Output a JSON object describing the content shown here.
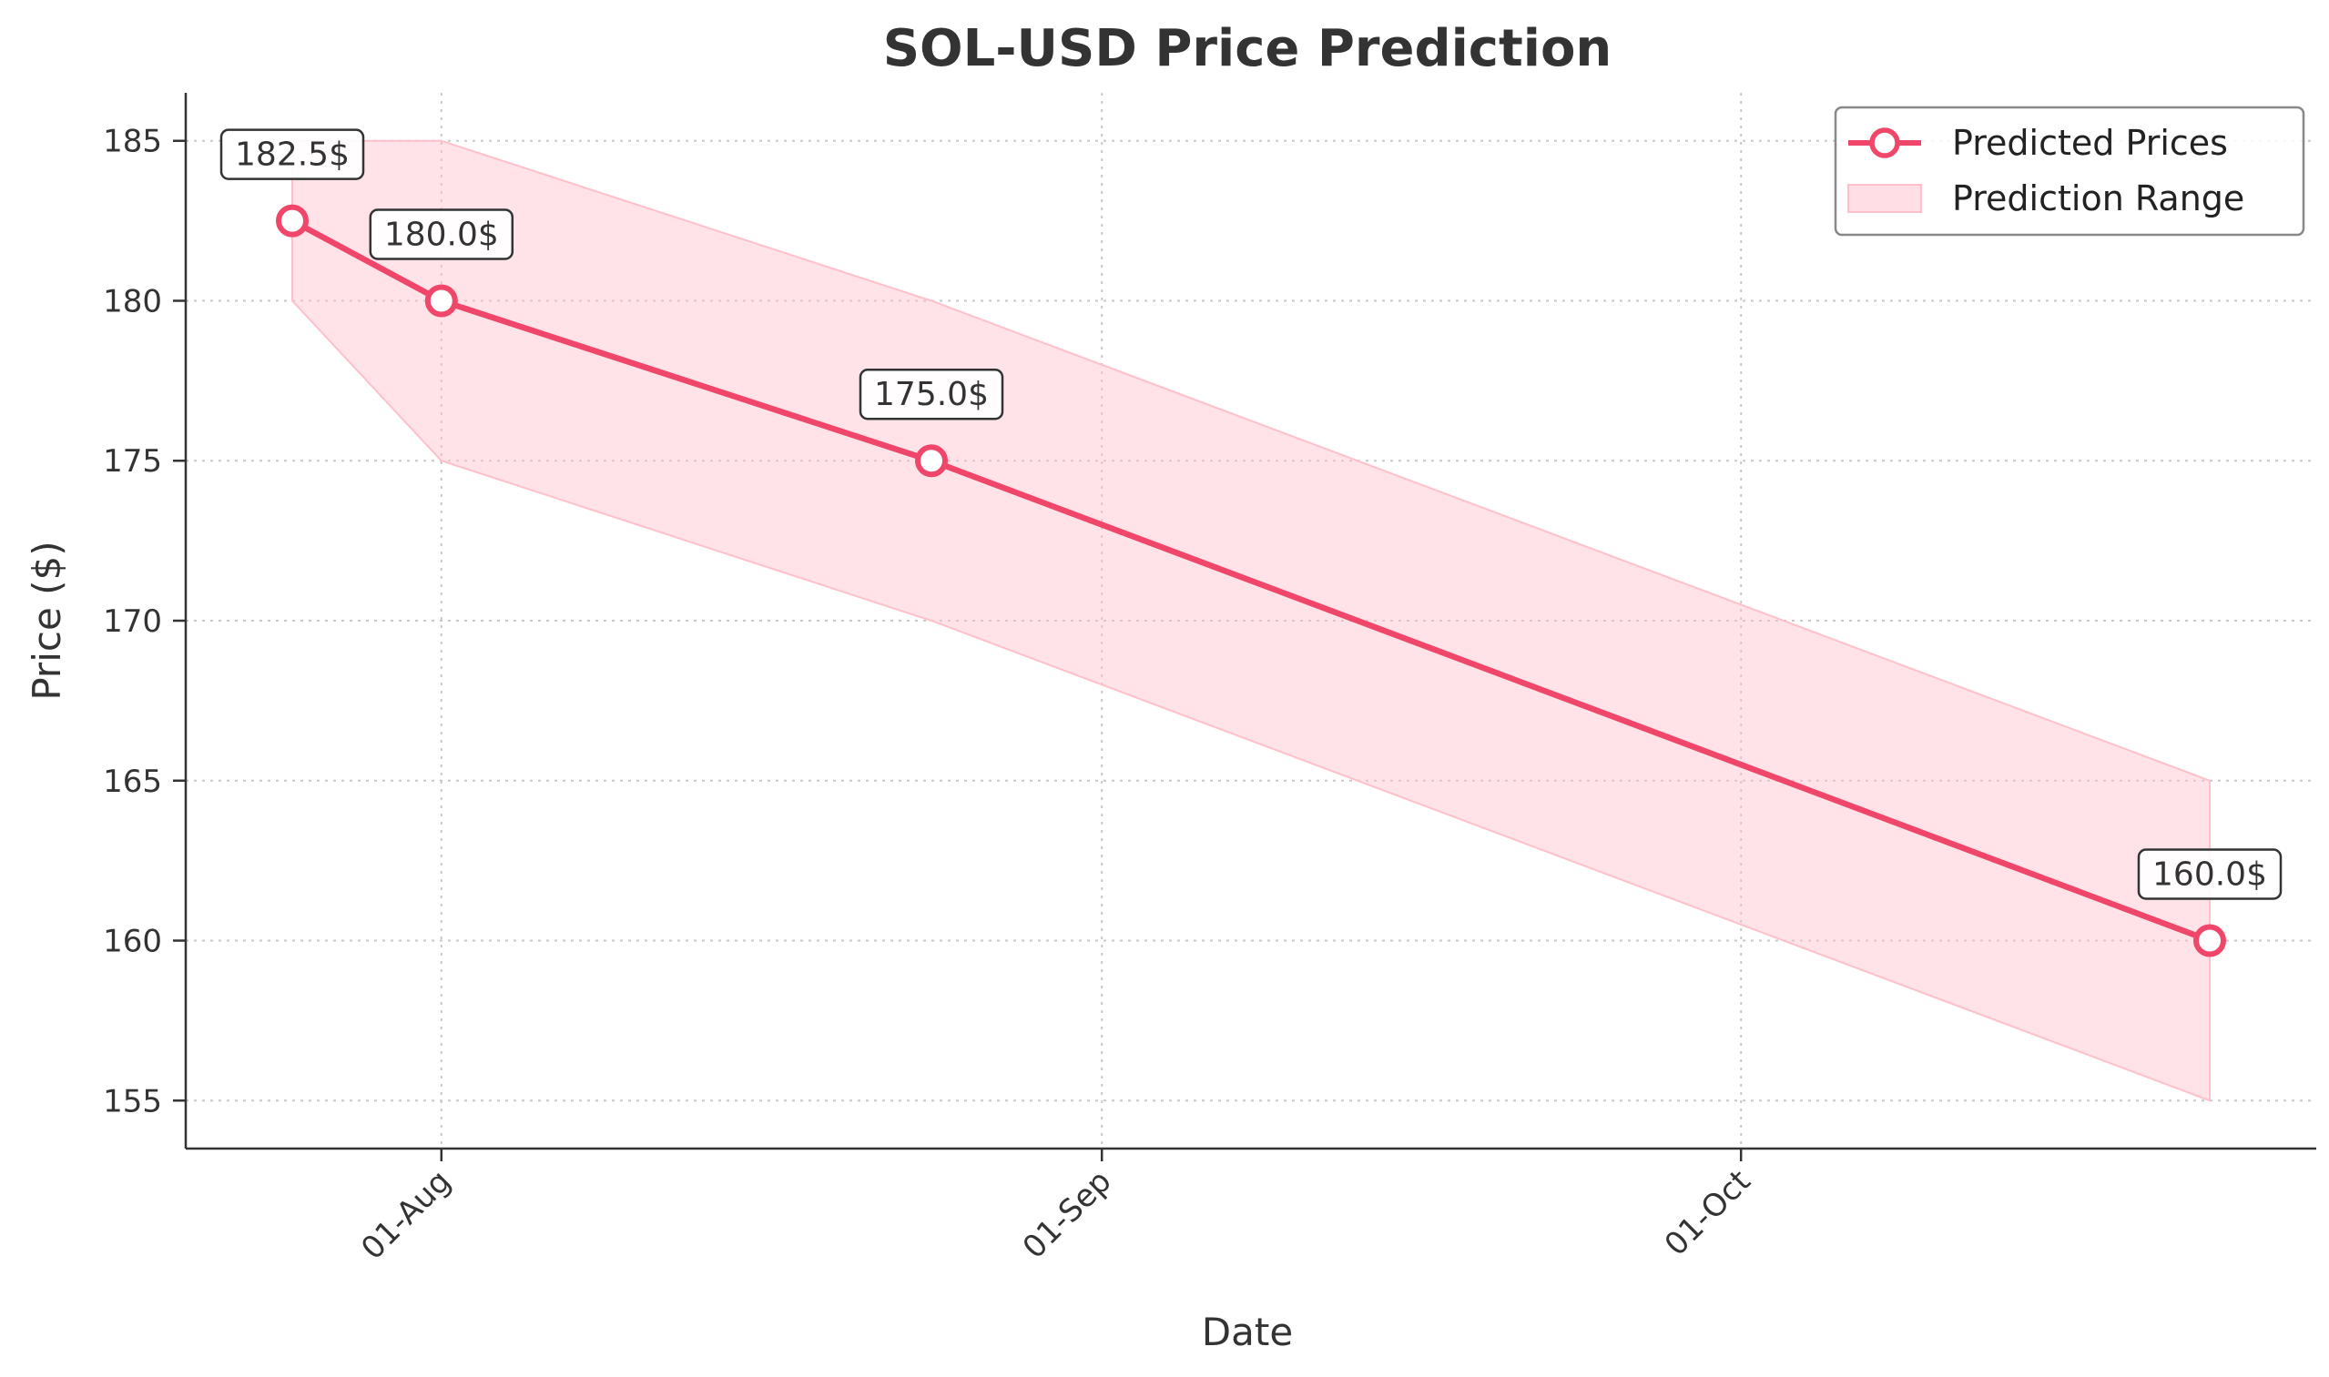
{
  "chart_data": {
    "type": "line",
    "title": "SOL-USD Price Prediction",
    "xlabel": "Date",
    "ylabel": "Price ($)",
    "x_type": "date",
    "x_ticks": [
      {
        "date": "2024-08-01",
        "label": "01-Aug"
      },
      {
        "date": "2024-09-01",
        "label": "01-Sep"
      },
      {
        "date": "2024-10-01",
        "label": "01-Oct"
      }
    ],
    "xlim": [
      "2024-07-20",
      "2024-10-28"
    ],
    "ylim": [
      153.5,
      186.5
    ],
    "y_ticks": [
      155,
      160,
      165,
      170,
      175,
      180,
      185
    ],
    "grid": true,
    "legend_position": "top-right",
    "series": [
      {
        "name": "Predicted Prices",
        "color": "#f0466a",
        "x": [
          "2024-07-25",
          "2024-08-01",
          "2024-08-24",
          "2024-10-23"
        ],
        "values": [
          182.5,
          180.0,
          175.0,
          160.0
        ],
        "annotations": [
          "182.5$",
          "180.0$",
          "175.0$",
          "160.0$"
        ]
      }
    ],
    "range": {
      "name": "Prediction Range",
      "color": "#ffc0cb",
      "x": [
        "2024-07-25",
        "2024-08-01",
        "2024-08-24",
        "2024-10-23"
      ],
      "upper": [
        185.0,
        185.0,
        180.0,
        165.0
      ],
      "lower": [
        180.0,
        175.0,
        170.0,
        155.0
      ]
    }
  }
}
